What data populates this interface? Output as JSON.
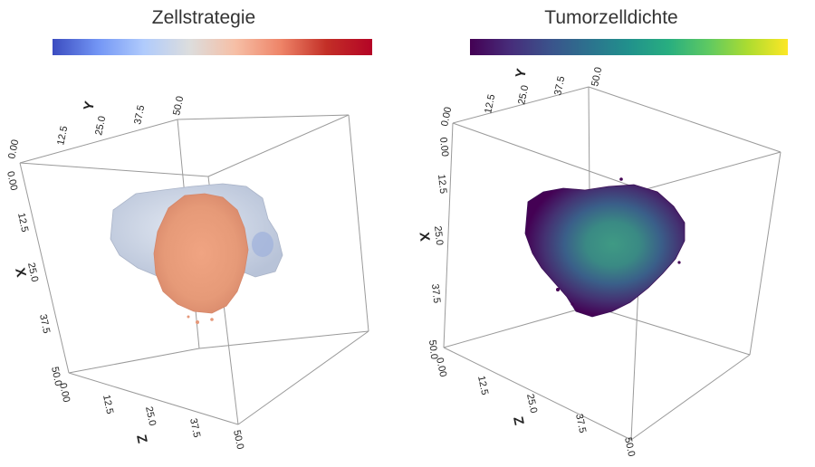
{
  "chart_data": [
    {
      "type": "volume-3d",
      "title": "Zellstrategie",
      "colorscale": [
        "#3b4cc0",
        "#dcdddd",
        "#b40426"
      ],
      "axes": {
        "x": {
          "label": "X",
          "range": [
            0,
            50
          ],
          "ticks": [
            "0.00",
            "12.5",
            "25.0",
            "37.5",
            "50.0"
          ]
        },
        "y": {
          "label": "Y",
          "range": [
            0,
            50
          ],
          "ticks": [
            "0.00",
            "12.5",
            "25.0",
            "37.5",
            "50.0"
          ]
        },
        "z": {
          "label": "Z",
          "range": [
            0,
            50
          ],
          "ticks": [
            "0.00",
            "12.5",
            "25.0",
            "37.5",
            "50.0"
          ]
        }
      }
    },
    {
      "type": "volume-3d",
      "title": "Tumorzelldichte",
      "colorscale": [
        "#440154",
        "#21918c",
        "#fde725"
      ],
      "axes": {
        "x": {
          "label": "X",
          "range": [
            0,
            50
          ],
          "ticks": [
            "0.00",
            "12.5",
            "25.0",
            "37.5",
            "50.0"
          ]
        },
        "y": {
          "label": "Y",
          "range": [
            0,
            50
          ],
          "ticks": [
            "0.00",
            "12.5",
            "25.0",
            "37.5",
            "50.0"
          ]
        },
        "z": {
          "label": "Z",
          "range": [
            0,
            50
          ],
          "ticks": [
            "0.00",
            "12.5",
            "25.0",
            "37.5",
            "50.0"
          ]
        }
      }
    }
  ]
}
